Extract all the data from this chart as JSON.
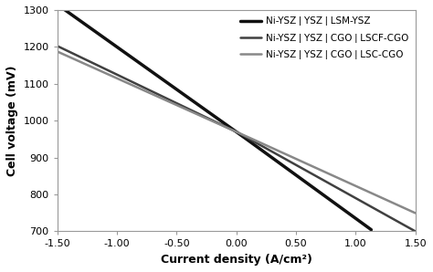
{
  "xlabel": "Current density (A/cm²)",
  "ylabel": "Cell voltage (mV)",
  "xlim": [
    -1.5,
    1.5
  ],
  "ylim": [
    700,
    1300
  ],
  "yticks": [
    700,
    800,
    900,
    1000,
    1100,
    1200,
    1300
  ],
  "xticks": [
    -1.5,
    -1.0,
    -0.5,
    0.0,
    0.5,
    1.0,
    1.5
  ],
  "curves": [
    {
      "label": "Ni-YSZ❘YSZ❘LSM-YSZ",
      "color": "#111111",
      "lw": 2.5,
      "x0": -1.5,
      "x1": 1.13,
      "ocv": 970,
      "sl": 230,
      "sr": -235,
      "cl": 0,
      "cr": 0
    },
    {
      "label": "Ni-YSZ❘YSZ❘CGO❘LSCF-CGO",
      "color": "#404040",
      "lw": 1.8,
      "x0": -1.5,
      "x1": 1.5,
      "ocv": 970,
      "sl": 155,
      "sr": -180,
      "cl": 0,
      "cr": 0
    },
    {
      "label": "Ni-YSZ❘YSZ❘CGO❘LSC-CGO",
      "color": "#888888",
      "lw": 1.8,
      "x0": -1.5,
      "x1": 1.5,
      "ocv": 970,
      "sl": 145,
      "sr": -147,
      "cl": 0,
      "cr": 0
    }
  ],
  "legend_fontsize": 7.5,
  "axis_fontsize": 9,
  "tick_fontsize": 8,
  "background_color": "#ffffff"
}
